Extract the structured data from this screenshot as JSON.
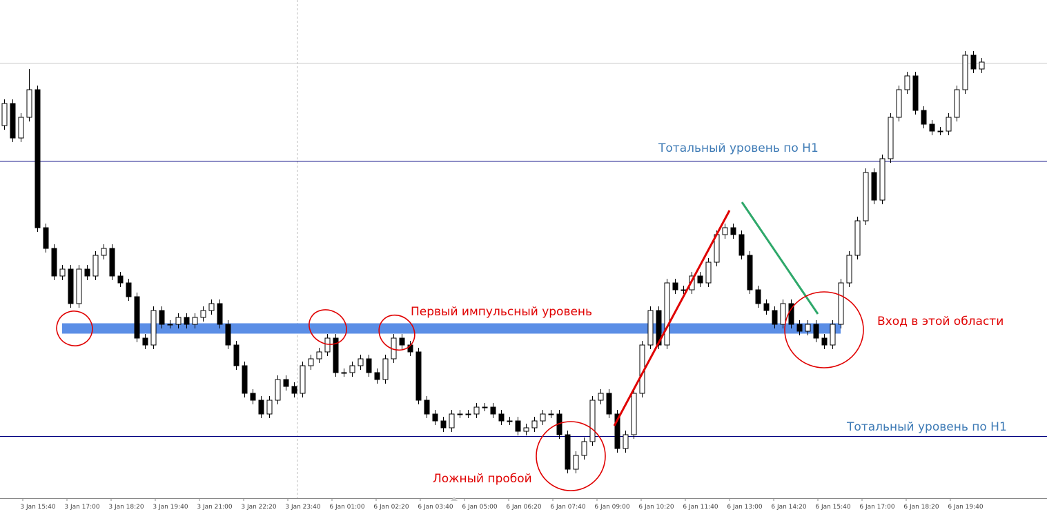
{
  "chart_data": {
    "type": "candlestick",
    "x_labels": [
      "3 Jan 15:40",
      "3 Jan 17:00",
      "3 Jan 18:20",
      "3 Jan 19:40",
      "3 Jan 21:00",
      "3 Jan 22:20",
      "3 Jan 23:40",
      "6 Jan 01:00",
      "6 Jan 02:20",
      "6 Jan 03:40",
      "6 Jan 05:00",
      "6 Jan 06:20",
      "6 Jan 07:40",
      "6 Jan 09:00",
      "6 Jan 10:20",
      "6 Jan 11:40",
      "6 Jan 13:00",
      "6 Jan 14:20",
      "6 Jan 15:40",
      "6 Jan 17:00",
      "6 Jan 18:20",
      "6 Jan 19:40"
    ],
    "ylim": [
      20,
      742
    ],
    "open": [
      560,
      592,
      542,
      572,
      612,
      412,
      382,
      342,
      352,
      302,
      352,
      342,
      372,
      382,
      342,
      332,
      312,
      252,
      242,
      292,
      272,
      272,
      282,
      272,
      282,
      292,
      302,
      272,
      242,
      212,
      172,
      162,
      142,
      162,
      192,
      182,
      172,
      212,
      222,
      232,
      252,
      202,
      202,
      212,
      222,
      202,
      192,
      222,
      252,
      242,
      232,
      162,
      142,
      132,
      122,
      142,
      142,
      142,
      152,
      152,
      142,
      132,
      132,
      117,
      122,
      132,
      142,
      142,
      112,
      62,
      82,
      102,
      162,
      172,
      142,
      92,
      112,
      172,
      242,
      292,
      242,
      332,
      322,
      322,
      342,
      332,
      362,
      402,
      412,
      402,
      372,
      322,
      302,
      292,
      272,
      302,
      272,
      262,
      272,
      252,
      242,
      272,
      332,
      372,
      422,
      492,
      452,
      512,
      572,
      612,
      632,
      582,
      562,
      552,
      552,
      572,
      612,
      662,
      642
    ],
    "high": [
      598,
      598,
      578,
      642,
      618,
      418,
      388,
      358,
      358,
      358,
      358,
      378,
      388,
      388,
      348,
      338,
      318,
      258,
      298,
      298,
      278,
      288,
      288,
      288,
      298,
      308,
      308,
      278,
      248,
      218,
      178,
      168,
      168,
      198,
      198,
      188,
      218,
      228,
      238,
      258,
      258,
      208,
      218,
      228,
      228,
      208,
      228,
      258,
      258,
      248,
      238,
      168,
      148,
      138,
      148,
      148,
      148,
      158,
      158,
      158,
      148,
      138,
      138,
      128,
      138,
      148,
      148,
      148,
      118,
      88,
      108,
      168,
      178,
      178,
      148,
      118,
      178,
      248,
      298,
      298,
      338,
      338,
      328,
      348,
      348,
      368,
      408,
      418,
      418,
      408,
      378,
      328,
      308,
      298,
      308,
      308,
      278,
      278,
      278,
      258,
      278,
      338,
      378,
      428,
      498,
      498,
      518,
      578,
      618,
      638,
      638,
      588,
      568,
      558,
      578,
      618,
      668,
      668,
      658
    ],
    "low": [
      554,
      536,
      536,
      566,
      406,
      376,
      336,
      336,
      296,
      296,
      336,
      336,
      366,
      336,
      326,
      306,
      246,
      236,
      236,
      266,
      266,
      266,
      266,
      266,
      276,
      286,
      266,
      236,
      206,
      166,
      156,
      136,
      136,
      156,
      176,
      166,
      166,
      206,
      216,
      226,
      196,
      196,
      196,
      206,
      196,
      186,
      186,
      216,
      236,
      226,
      156,
      136,
      126,
      116,
      116,
      136,
      136,
      136,
      146,
      136,
      126,
      126,
      111,
      111,
      116,
      126,
      136,
      106,
      56,
      56,
      76,
      96,
      156,
      136,
      86,
      86,
      106,
      166,
      236,
      236,
      236,
      316,
      316,
      316,
      326,
      326,
      356,
      396,
      396,
      366,
      316,
      296,
      286,
      266,
      266,
      266,
      256,
      256,
      246,
      236,
      236,
      266,
      326,
      366,
      416,
      446,
      446,
      506,
      566,
      606,
      576,
      556,
      546,
      546,
      546,
      566,
      606,
      636,
      636
    ],
    "close": [
      592,
      542,
      572,
      612,
      412,
      382,
      342,
      352,
      302,
      352,
      342,
      372,
      382,
      342,
      332,
      312,
      252,
      242,
      292,
      272,
      272,
      282,
      272,
      282,
      292,
      302,
      272,
      242,
      212,
      172,
      162,
      142,
      162,
      192,
      182,
      172,
      212,
      222,
      232,
      252,
      202,
      202,
      212,
      222,
      202,
      192,
      222,
      252,
      242,
      232,
      162,
      142,
      132,
      122,
      142,
      142,
      142,
      152,
      152,
      142,
      132,
      132,
      117,
      122,
      132,
      142,
      142,
      112,
      62,
      82,
      102,
      162,
      172,
      142,
      92,
      112,
      172,
      242,
      292,
      242,
      332,
      322,
      322,
      342,
      332,
      362,
      402,
      412,
      402,
      372,
      322,
      302,
      292,
      272,
      302,
      272,
      262,
      272,
      252,
      242,
      272,
      332,
      372,
      422,
      492,
      452,
      512,
      572,
      612,
      632,
      582,
      562,
      552,
      552,
      572,
      612,
      662,
      642,
      652
    ],
    "levels": [
      {
        "value": 651,
        "color": "#c8c8c8"
      },
      {
        "value": 509,
        "color": "#000080"
      },
      {
        "value": 110,
        "color": "#000080"
      }
    ],
    "zone": {
      "value": 266,
      "color": "#5b8ee6"
    },
    "annotations": [
      {
        "text": "Тотальный уровень по H1",
        "color": "#3d7ab5"
      },
      {
        "text": "Тотальный уровень по H1",
        "color": "#3d7ab5"
      },
      {
        "text": "Первый импульсный уровень",
        "color": "#e00000"
      },
      {
        "text": "Вход в этой области",
        "color": "#e00000"
      },
      {
        "text": "Ложный пробой",
        "color": "#e00000"
      }
    ]
  }
}
